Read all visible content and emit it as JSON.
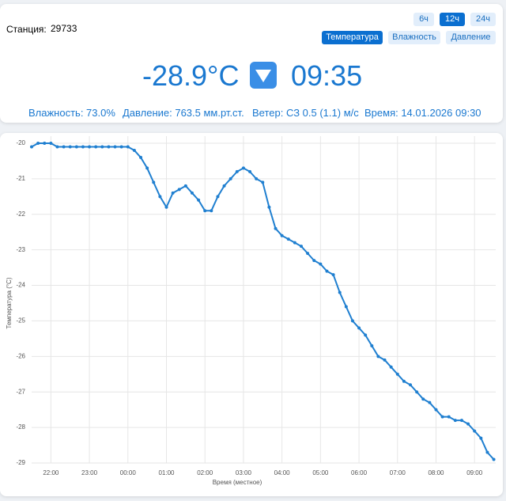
{
  "header": {
    "station_label": "Станция:",
    "station": "29733",
    "range_buttons": [
      "6ч",
      "12ч",
      "24ч"
    ],
    "active_range": 1,
    "metric_buttons": [
      "Температура",
      "Влажность",
      "Давление"
    ],
    "active_metric": 0,
    "current_temp": "-28.9°C",
    "current_time": "09:35",
    "info": [
      "Влажность: 73.0%",
      "Давление: 763.5 мм.рт.ст.",
      "Ветер: СЗ 0.5 (1.1) м/с",
      "Время: 14.01.2026 09:30"
    ]
  },
  "chart_data": {
    "type": "line",
    "x_label": "Время (местное)",
    "y_label": "Температура (°C)",
    "x": [
      -150,
      -140,
      -130,
      -120,
      -110,
      -100,
      -90,
      -80,
      -70,
      -60,
      -50,
      -40,
      -30,
      -20,
      -10,
      0,
      10,
      20,
      30,
      40,
      50,
      60,
      70,
      80,
      90,
      100,
      110,
      120,
      130,
      140,
      150,
      160,
      170,
      180,
      190,
      200,
      210,
      220,
      230,
      240,
      250,
      260,
      270,
      280,
      290,
      300,
      310,
      320,
      330,
      340,
      350,
      360,
      370,
      380,
      390,
      400,
      410,
      420,
      430,
      440,
      450,
      460,
      470,
      480,
      490,
      500,
      510,
      520,
      530,
      540,
      550,
      560,
      570
    ],
    "series": [
      {
        "name": "Температура",
        "color": "#1f7fd0",
        "values": [
          -20.1,
          -20,
          -20,
          -20,
          -20.1,
          -20.1,
          -20.1,
          -20.1,
          -20.1,
          -20.1,
          -20.1,
          -20.1,
          -20.1,
          -20.1,
          -20.1,
          -20.1,
          -20.2,
          -20.4,
          -20.7,
          -21.1,
          -21.5,
          -21.8,
          -21.4,
          -21.3,
          -21.2,
          -21.4,
          -21.6,
          -21.9,
          -21.9,
          -21.5,
          -21.2,
          -21.0,
          -20.8,
          -20.7,
          -20.8,
          -21.0,
          -21.1,
          -21.8,
          -22.4,
          -22.6,
          -22.7,
          -22.8,
          -22.9,
          -23.1,
          -23.3,
          -23.4,
          -23.6,
          -23.7,
          -24.2,
          -24.6,
          -25.0,
          -25.2,
          -25.4,
          -25.7,
          -26.0,
          -26.1,
          -26.3,
          -26.5,
          -26.7,
          -26.8,
          -27.0,
          -27.2,
          -27.3,
          -27.5,
          -27.7,
          -27.7,
          -27.8,
          -27.8,
          -27.9,
          -28.1,
          -28.3,
          -28.7,
          -28.9
        ]
      }
    ],
    "xlim": [
      -150,
      573
    ],
    "xticks": [
      {
        "value": -120,
        "label": "22:00"
      },
      {
        "value": -60,
        "label": "23:00"
      },
      {
        "value": 0,
        "label": "00:00"
      },
      {
        "value": 60,
        "label": "01:00"
      },
      {
        "value": 120,
        "label": "02:00"
      },
      {
        "value": 180,
        "label": "03:00"
      },
      {
        "value": 240,
        "label": "04:00"
      },
      {
        "value": 300,
        "label": "05:00"
      },
      {
        "value": 360,
        "label": "06:00"
      },
      {
        "value": 420,
        "label": "07:00"
      },
      {
        "value": 480,
        "label": "08:00"
      },
      {
        "value": 540,
        "label": "09:00"
      }
    ],
    "ylim": [
      -29,
      -19.8
    ],
    "yticks": [
      -20,
      -21,
      -22,
      -23,
      -24,
      -25,
      -26,
      -27,
      -28,
      -29
    ],
    "grid": true
  }
}
